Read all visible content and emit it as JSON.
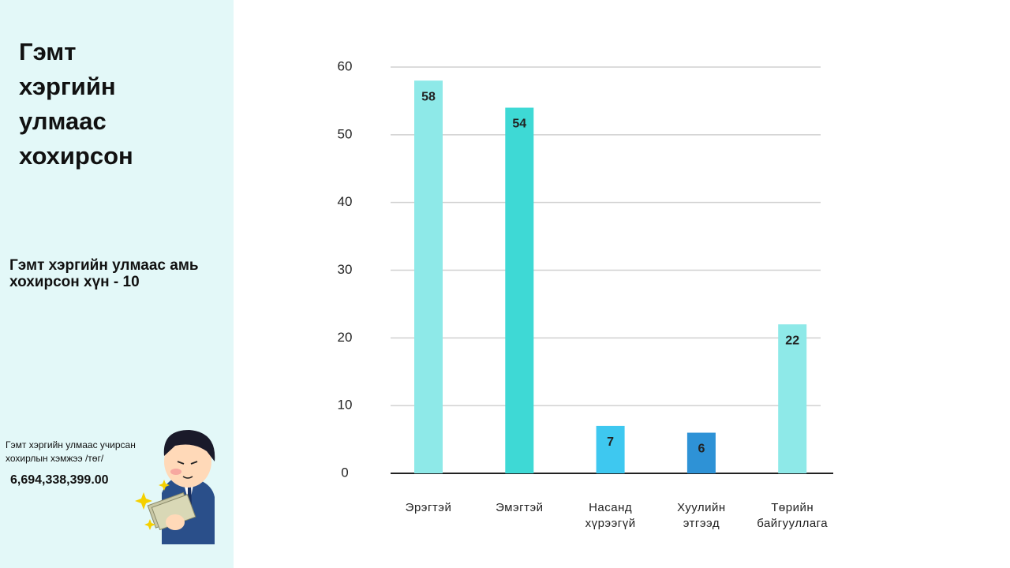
{
  "sidebar": {
    "title": "Гэмт хэргийн улмаас хохирсон",
    "deaths": "Гэмт хэргийн улмаас амь хохирсон хүн - 10",
    "damage_label": "Гэмт хэргийн улмаас учирсан хохирлын хэмжээ /төг/",
    "damage_value": "6,694,338,399.00"
  },
  "chart_data": {
    "type": "bar",
    "categories": [
      "Эрэгтэй",
      "Эмэгтэй",
      "Насанд\nхүрээгүй",
      "Хуулийн\nэтгээд",
      "Төрийн\nбайгууллага"
    ],
    "values": [
      58,
      54,
      7,
      6,
      22
    ],
    "colors": [
      "#8ee9e8",
      "#3ed9d5",
      "#3ec8f0",
      "#2e92d6",
      "#8ee9e8"
    ],
    "ylim": [
      0,
      60
    ],
    "yticks": [
      0,
      10,
      20,
      30,
      40,
      50,
      60
    ],
    "grid": true
  }
}
